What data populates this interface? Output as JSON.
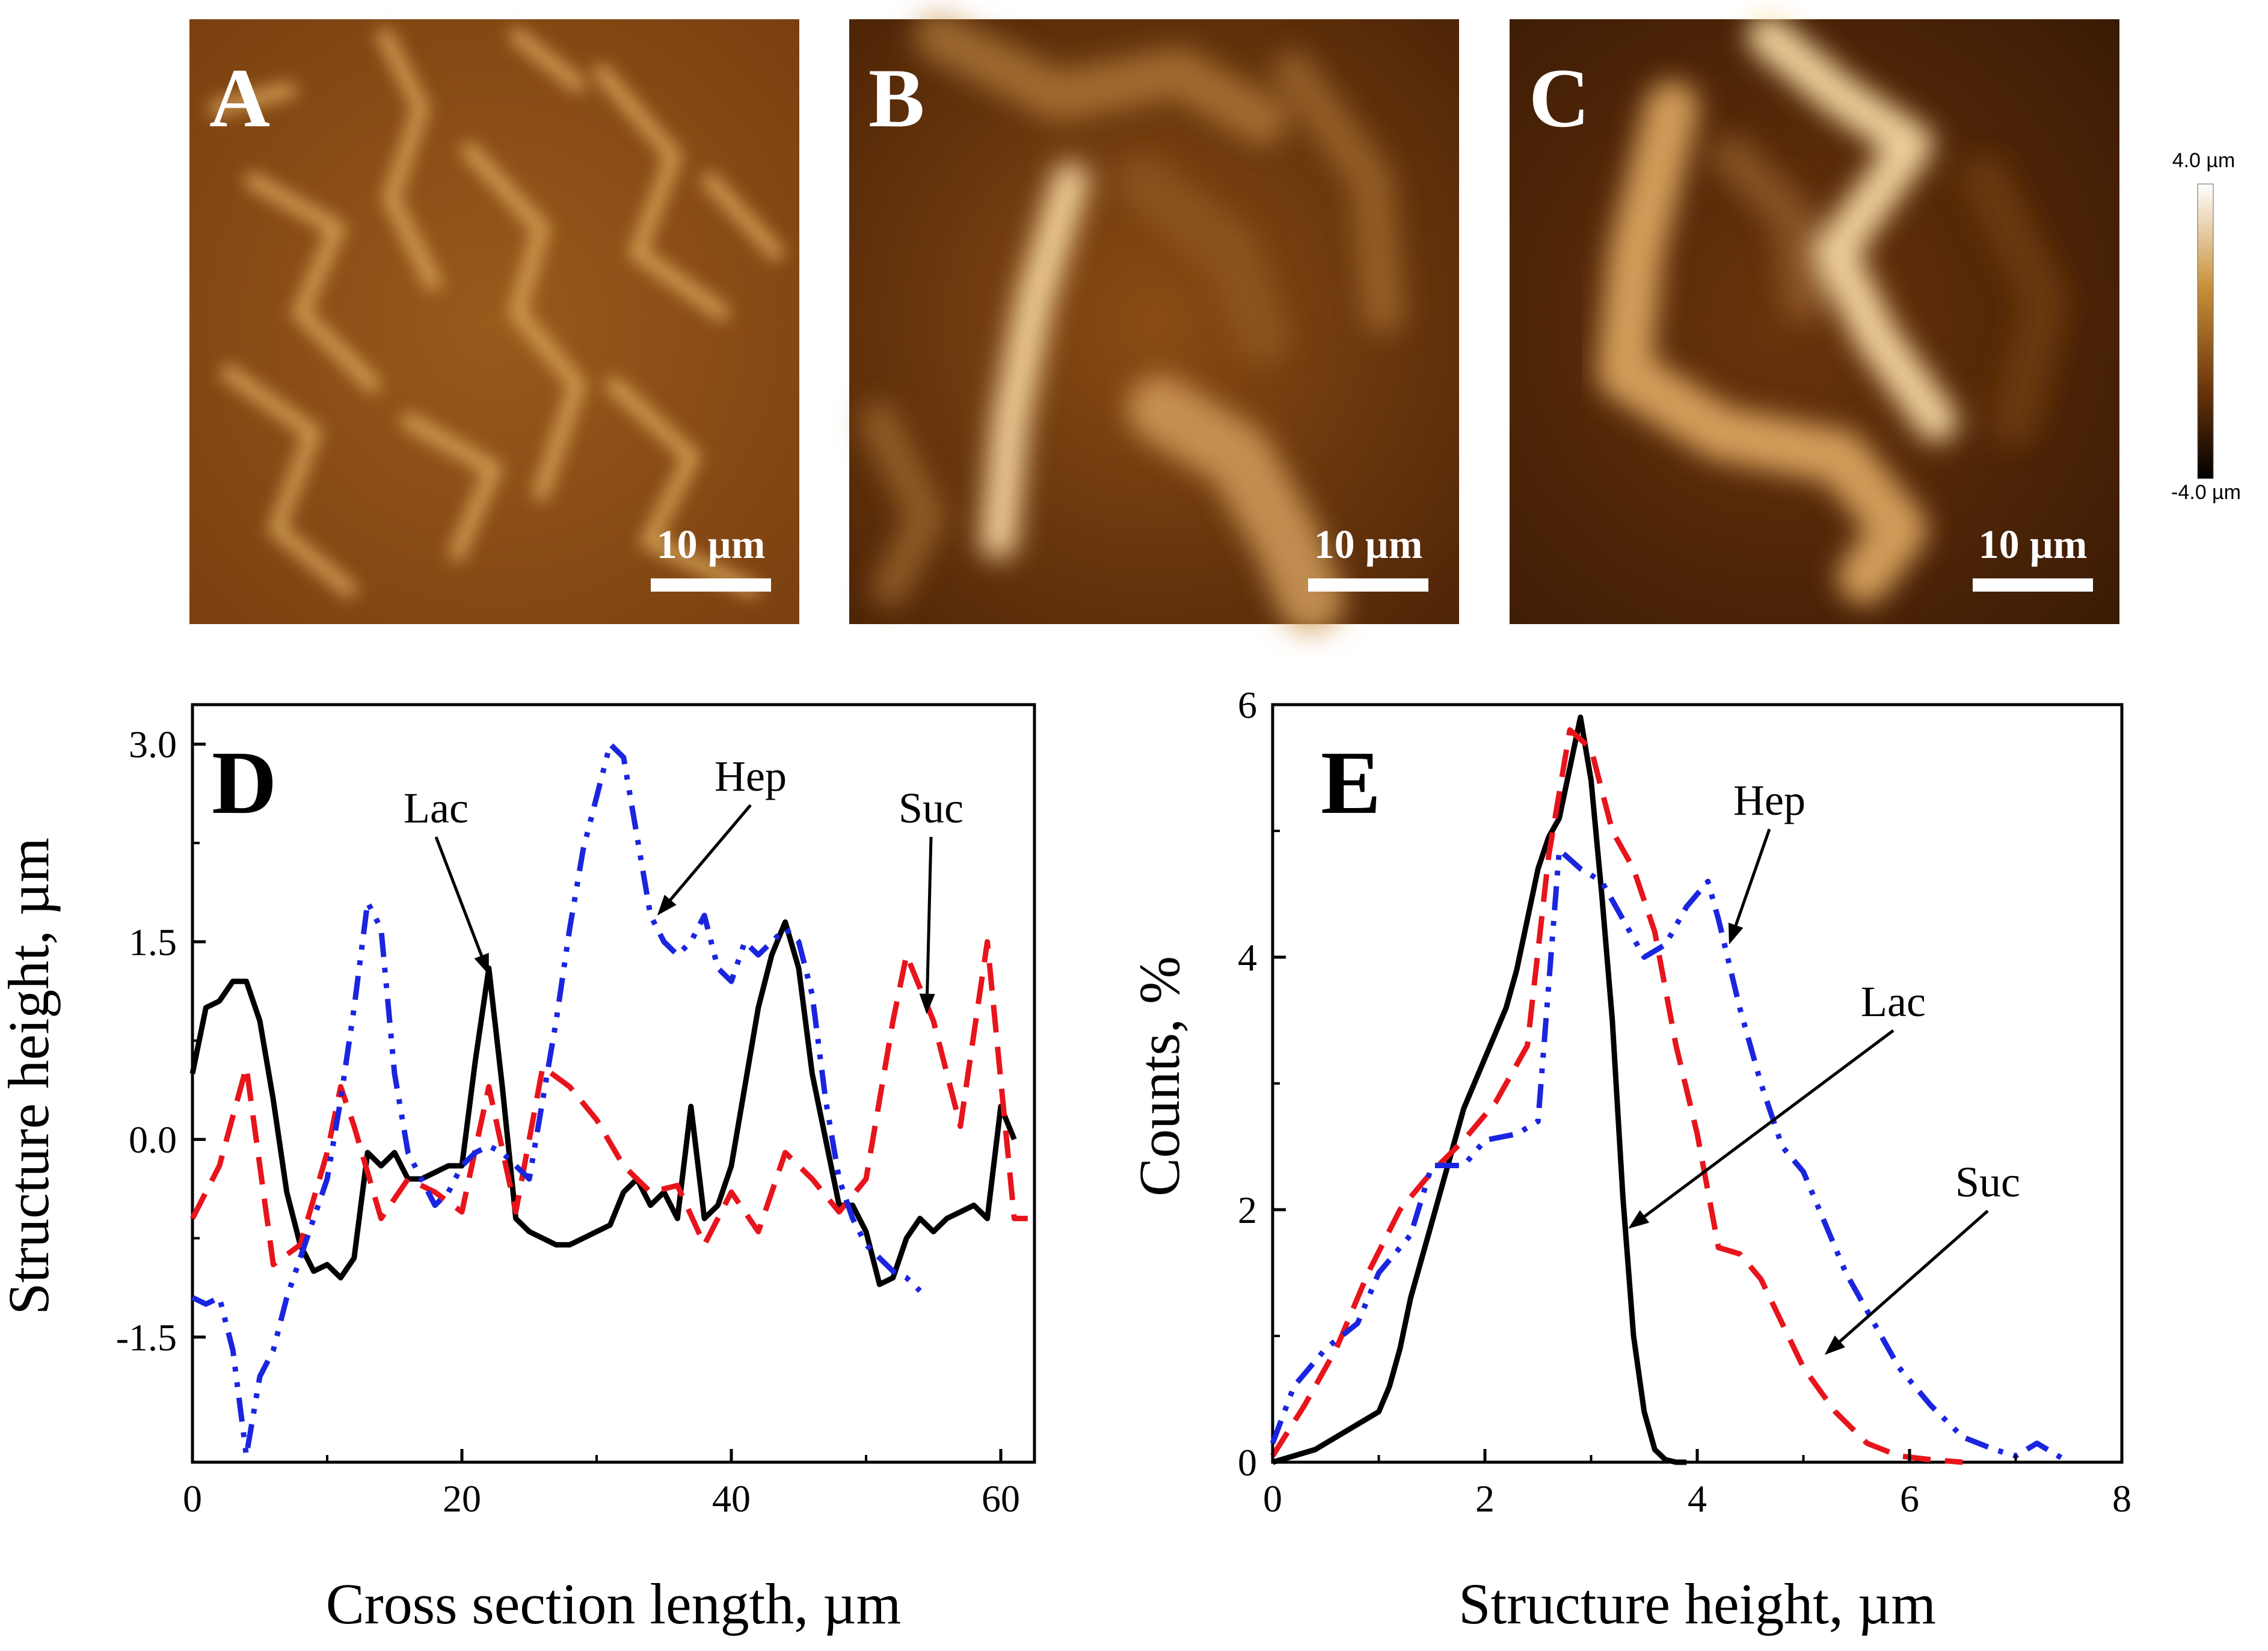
{
  "panels": {
    "A": {
      "letter": "A",
      "scale_bar_label": "10 µm"
    },
    "B": {
      "letter": "B",
      "scale_bar_label": "10 µm"
    },
    "C": {
      "letter": "C",
      "scale_bar_label": "10 µm"
    }
  },
  "colorbar": {
    "max_label": "4.0 µm",
    "min_label": "-4.0 µm",
    "colors": [
      "#ffffff",
      "#c8903a",
      "#8a4a10",
      "#000000"
    ]
  },
  "chart_data": [
    {
      "panel": "D",
      "type": "line",
      "letter": "D",
      "xlabel": "Cross section length, µm",
      "ylabel": "Structure height,  µm",
      "xlim": [
        0,
        62.5
      ],
      "ylim": [
        -2.45,
        3.3
      ],
      "xticks": [
        0,
        20,
        40,
        60
      ],
      "xtick_labels": [
        "0",
        "20",
        "40",
        "60"
      ],
      "yticks": [
        -1.5,
        0,
        1.5,
        3
      ],
      "ytick_labels": [
        "-1.5",
        "0.0",
        "1.5",
        "3.0"
      ],
      "series": [
        {
          "name": "Lac",
          "color": "#000000",
          "style": "solid",
          "x": [
            0,
            1,
            2,
            3,
            4,
            5,
            6,
            7,
            8,
            9,
            10,
            11,
            12,
            13,
            14,
            15,
            16,
            17,
            18,
            19,
            20,
            21,
            22,
            23,
            24,
            25,
            26,
            27,
            28,
            29,
            30,
            31,
            32,
            33,
            34,
            35,
            36,
            37,
            38,
            39,
            40,
            41,
            42,
            43,
            44,
            45,
            46,
            47,
            48,
            49,
            50,
            51,
            52,
            53,
            54,
            55,
            56,
            57,
            58,
            59,
            60,
            61
          ],
          "y": [
            0.5,
            1.0,
            1.05,
            1.2,
            1.2,
            0.9,
            0.3,
            -0.4,
            -0.8,
            -1.0,
            -0.95,
            -1.05,
            -0.9,
            -0.1,
            -0.2,
            -0.1,
            -0.3,
            -0.3,
            -0.25,
            -0.2,
            -0.2,
            0.6,
            1.3,
            0.4,
            -0.6,
            -0.7,
            -0.75,
            -0.8,
            -0.8,
            -0.75,
            -0.7,
            -0.65,
            -0.4,
            -0.3,
            -0.5,
            -0.4,
            -0.6,
            0.25,
            -0.6,
            -0.5,
            -0.2,
            0.4,
            1.0,
            1.4,
            1.65,
            1.3,
            0.5,
            0.0,
            -0.5,
            -0.5,
            -0.7,
            -1.1,
            -1.05,
            -0.75,
            -0.6,
            -0.7,
            -0.6,
            -0.55,
            -0.5,
            -0.6,
            0.25,
            0.0
          ]
        },
        {
          "name": "Suc",
          "color": "#e8141c",
          "style": "dashed",
          "x": [
            0,
            2,
            4,
            6,
            8,
            10,
            11,
            12,
            14,
            16,
            18,
            20,
            22,
            24,
            26,
            28,
            30,
            32,
            34,
            36,
            38,
            40,
            42,
            44,
            46,
            48,
            50,
            52,
            53,
            55,
            57,
            59,
            61,
            62
          ],
          "y": [
            -0.6,
            -0.2,
            0.55,
            -0.95,
            -0.8,
            -0.1,
            0.4,
            0.1,
            -0.6,
            -0.3,
            -0.4,
            -0.55,
            0.4,
            -0.55,
            0.55,
            0.4,
            0.15,
            -0.2,
            -0.4,
            -0.35,
            -0.8,
            -0.4,
            -0.7,
            -0.1,
            -0.3,
            -0.55,
            -0.3,
            0.9,
            1.4,
            0.9,
            0.1,
            1.5,
            -0.6,
            -0.6
          ]
        },
        {
          "name": "Hep",
          "color": "#1a25e0",
          "style": "dashdotdot",
          "x": [
            0,
            1,
            2,
            3,
            4,
            5,
            6,
            7,
            8,
            9,
            10,
            11,
            12,
            13,
            14,
            15,
            16,
            17,
            18,
            19,
            20,
            21,
            22,
            23,
            24,
            25,
            26,
            27,
            28,
            29,
            30,
            31,
            32,
            33,
            34,
            35,
            36,
            37,
            38,
            39,
            40,
            41,
            42,
            43,
            44,
            45,
            46,
            47,
            48,
            49,
            50,
            51,
            52,
            53,
            54
          ],
          "y": [
            -1.2,
            -1.25,
            -1.2,
            -1.6,
            -2.4,
            -1.8,
            -1.6,
            -1.2,
            -0.9,
            -0.6,
            -0.3,
            0.3,
            1.0,
            1.8,
            1.6,
            0.5,
            -0.1,
            -0.3,
            -0.5,
            -0.4,
            -0.2,
            -0.1,
            -0.05,
            -0.1,
            -0.2,
            -0.3,
            0.3,
            0.9,
            1.6,
            2.2,
            2.6,
            3.0,
            2.9,
            2.3,
            1.7,
            1.5,
            1.4,
            1.5,
            1.7,
            1.3,
            1.2,
            1.5,
            1.4,
            1.5,
            1.6,
            1.5,
            1.1,
            0.3,
            -0.3,
            -0.6,
            -0.8,
            -0.9,
            -1.0,
            -1.05,
            -1.15
          ]
        }
      ],
      "annotations": [
        {
          "text": "Lac",
          "series": "Lac",
          "target": [
            22,
            1.25
          ]
        },
        {
          "text": "Hep",
          "series": "Hep",
          "target": [
            34.5,
            1.7
          ]
        },
        {
          "text": "Suc",
          "series": "Suc",
          "target": [
            54.5,
            0.95
          ]
        }
      ]
    },
    {
      "panel": "E",
      "type": "line",
      "letter": "E",
      "xlabel": "Structure height,  µm",
      "ylabel": "Counts, %",
      "xlim": [
        0,
        8
      ],
      "ylim": [
        0,
        6
      ],
      "xticks": [
        0,
        2,
        4,
        6,
        8
      ],
      "xtick_labels": [
        "0",
        "2",
        "4",
        "6",
        "8"
      ],
      "yticks": [
        0,
        2,
        4,
        6
      ],
      "ytick_labels": [
        "0",
        "2",
        "4",
        "6"
      ],
      "series": [
        {
          "name": "Lac",
          "color": "#000000",
          "style": "solid",
          "x": [
            0,
            0.2,
            0.4,
            0.6,
            0.8,
            1.0,
            1.1,
            1.2,
            1.3,
            1.4,
            1.5,
            1.6,
            1.7,
            1.8,
            1.9,
            2.0,
            2.1,
            2.2,
            2.3,
            2.4,
            2.5,
            2.6,
            2.7,
            2.8,
            2.9,
            3.0,
            3.1,
            3.2,
            3.3,
            3.4,
            3.5,
            3.6,
            3.7,
            3.8,
            3.9
          ],
          "y": [
            0,
            0.05,
            0.1,
            0.2,
            0.3,
            0.4,
            0.6,
            0.9,
            1.3,
            1.6,
            1.9,
            2.2,
            2.5,
            2.8,
            3.0,
            3.2,
            3.4,
            3.6,
            3.9,
            4.3,
            4.7,
            4.95,
            5.1,
            5.5,
            5.9,
            5.4,
            4.5,
            3.5,
            2.1,
            1.0,
            0.4,
            0.1,
            0.02,
            0,
            0
          ]
        },
        {
          "name": "Suc",
          "color": "#e8141c",
          "style": "dashed",
          "x": [
            0,
            0.3,
            0.6,
            0.9,
            1.2,
            1.5,
            1.8,
            2.1,
            2.4,
            2.6,
            2.8,
            3.0,
            3.2,
            3.4,
            3.6,
            3.8,
            4.0,
            4.2,
            4.4,
            4.6,
            4.8,
            5.0,
            5.3,
            5.6,
            5.9,
            6.2,
            6.5
          ],
          "y": [
            0.05,
            0.45,
            0.9,
            1.5,
            2.0,
            2.3,
            2.55,
            2.85,
            3.3,
            4.8,
            5.8,
            5.65,
            5.0,
            4.7,
            4.2,
            3.3,
            2.6,
            1.7,
            1.65,
            1.45,
            1.1,
            0.75,
            0.4,
            0.15,
            0.05,
            0.02,
            0
          ]
        },
        {
          "name": "Hep",
          "color": "#1a25e0",
          "style": "dashdotdot",
          "x": [
            0,
            0.2,
            0.5,
            0.8,
            1.0,
            1.3,
            1.5,
            1.8,
            2.0,
            2.3,
            2.5,
            2.7,
            2.9,
            3.1,
            3.3,
            3.5,
            3.7,
            3.9,
            4.1,
            4.2,
            4.4,
            4.6,
            4.8,
            5.0,
            5.2,
            5.4,
            5.6,
            5.9,
            6.2,
            6.5,
            6.8,
            7.0,
            7.2,
            7.5
          ],
          "y": [
            0.15,
            0.6,
            0.9,
            1.1,
            1.5,
            1.8,
            2.35,
            2.35,
            2.55,
            2.6,
            2.7,
            4.85,
            4.7,
            4.6,
            4.3,
            4.0,
            4.1,
            4.4,
            4.6,
            4.3,
            3.6,
            3.0,
            2.5,
            2.3,
            1.9,
            1.5,
            1.2,
            0.75,
            0.45,
            0.2,
            0.1,
            0.05,
            0.15,
            0
          ]
        }
      ],
      "annotations": [
        {
          "text": "Hep",
          "series": "Hep",
          "target": [
            4.3,
            4.1
          ]
        },
        {
          "text": "Lac",
          "series": "Lac",
          "target": [
            3.35,
            1.85
          ]
        },
        {
          "text": "Suc",
          "series": "Suc",
          "target": [
            5.2,
            0.85
          ]
        }
      ]
    }
  ]
}
